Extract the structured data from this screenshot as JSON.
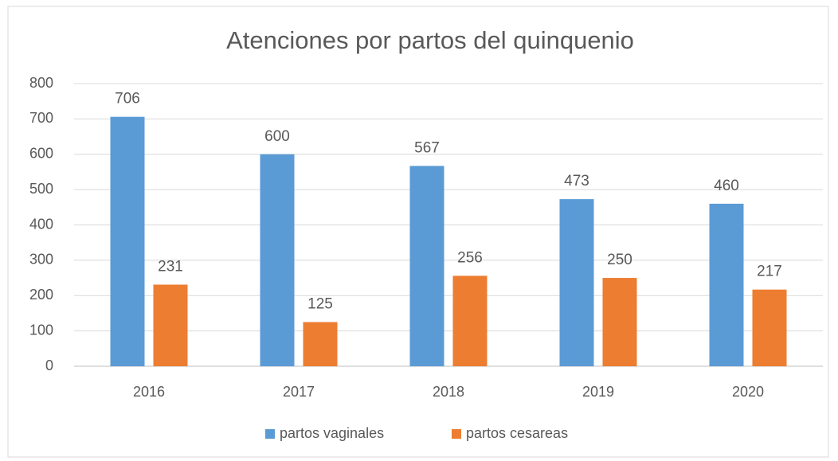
{
  "chart_data": {
    "type": "bar",
    "title": "Atenciones por partos del quinquenio",
    "categories": [
      "2016",
      "2017",
      "2018",
      "2019",
      "2020"
    ],
    "series": [
      {
        "name": "partos vaginales",
        "color": "#5b9bd5",
        "values": [
          706,
          600,
          567,
          473,
          460
        ]
      },
      {
        "name": "partos cesareas",
        "color": "#ed7d31",
        "values": [
          231,
          125,
          256,
          250,
          217
        ]
      }
    ],
    "ylim": [
      0,
      800
    ],
    "yticks": [
      0,
      100,
      200,
      300,
      400,
      500,
      600,
      700,
      800
    ],
    "grid": true,
    "legend": "bottom"
  }
}
